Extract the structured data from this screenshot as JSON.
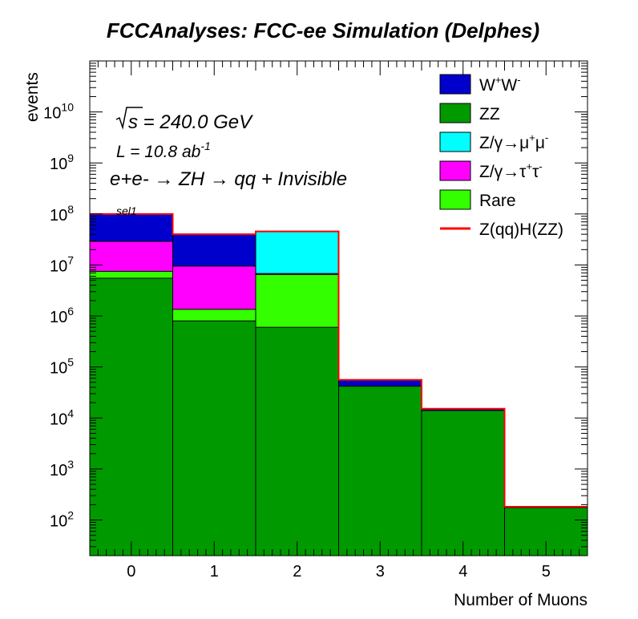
{
  "chart_data": {
    "type": "bar",
    "stacked": true,
    "title": "FCCAnalyses: FCC-ee Simulation (Delphes)",
    "xlabel": "Number of Muons",
    "ylabel": "events",
    "y_scale": "log",
    "ylim": [
      20,
      100000000000.0
    ],
    "xlim": [
      -0.5,
      5.5
    ],
    "x_ticks": [
      {
        "value": 0,
        "label": "0"
      },
      {
        "value": 1,
        "label": "1"
      },
      {
        "value": 2,
        "label": "2"
      },
      {
        "value": 3,
        "label": "3"
      },
      {
        "value": 4,
        "label": "4"
      },
      {
        "value": 5,
        "label": "5"
      }
    ],
    "y_ticks": [
      {
        "exp": 2,
        "base": "10",
        "sup": "2"
      },
      {
        "exp": 3,
        "base": "10",
        "sup": "3"
      },
      {
        "exp": 4,
        "base": "10",
        "sup": "4"
      },
      {
        "exp": 5,
        "base": "10",
        "sup": "5"
      },
      {
        "exp": 6,
        "base": "10",
        "sup": "6"
      },
      {
        "exp": 7,
        "base": "10",
        "sup": "7"
      },
      {
        "exp": 8,
        "base": "10",
        "sup": "8"
      },
      {
        "exp": 9,
        "base": "10",
        "sup": "9"
      },
      {
        "exp": 10,
        "base": "10",
        "sup": "10"
      }
    ],
    "bin_edges": [
      -0.5,
      0.5,
      1.5,
      2.5,
      3.5,
      4.5,
      5.5
    ],
    "stack_tops": [
      {
        "name": "W+W-",
        "color": "#0000cc",
        "values": [
          100000000,
          40000000,
          45000000,
          55000,
          15000,
          180
        ]
      },
      {
        "name": "Z/γ→μ+μ-",
        "color": "#00ffff",
        "values": [
          29000000,
          9500000,
          45000000,
          42000,
          14000,
          175
        ]
      },
      {
        "name": "Z/γ→τ+τ-",
        "color": "#ff00ff",
        "values": [
          29000000,
          9500000,
          6800000,
          42000,
          14000,
          175
        ]
      },
      {
        "name": "Rare",
        "color": "#33ff00",
        "values": [
          7500000,
          1350000,
          6500000,
          42000,
          14000,
          175
        ]
      },
      {
        "name": "ZZ",
        "color": "#009900",
        "values": [
          5500000,
          800000,
          600000,
          42000,
          14000,
          175
        ]
      }
    ],
    "signal": {
      "name": "Z(qq)H(ZZ)",
      "color": "#ff0000",
      "values": [
        100000000,
        40000000,
        45500000,
        56000,
        15200,
        182
      ]
    },
    "annotations": {
      "sqrt_s": "s = 240.0 GeV",
      "lumi_main": "L = 10.8 ab",
      "lumi_sup": "-1",
      "process": "e+e- → ZH → qq + Invisible",
      "selection": "sel1"
    },
    "legend": {
      "position": "top-right",
      "entries": [
        {
          "label": "W+W-",
          "color": "#0000cc",
          "kind": "box"
        },
        {
          "label": "ZZ",
          "color": "#009900",
          "kind": "box"
        },
        {
          "label": "Z/γ→μ+μ-",
          "color": "#00ffff",
          "kind": "box"
        },
        {
          "label": "Z/γ→τ+τ-",
          "color": "#ff00ff",
          "kind": "box"
        },
        {
          "label": "Rare",
          "color": "#33ff00",
          "kind": "box"
        },
        {
          "label": "Z(qq)H(ZZ)",
          "color": "#ff0000",
          "kind": "line"
        }
      ]
    },
    "grid": false
  }
}
